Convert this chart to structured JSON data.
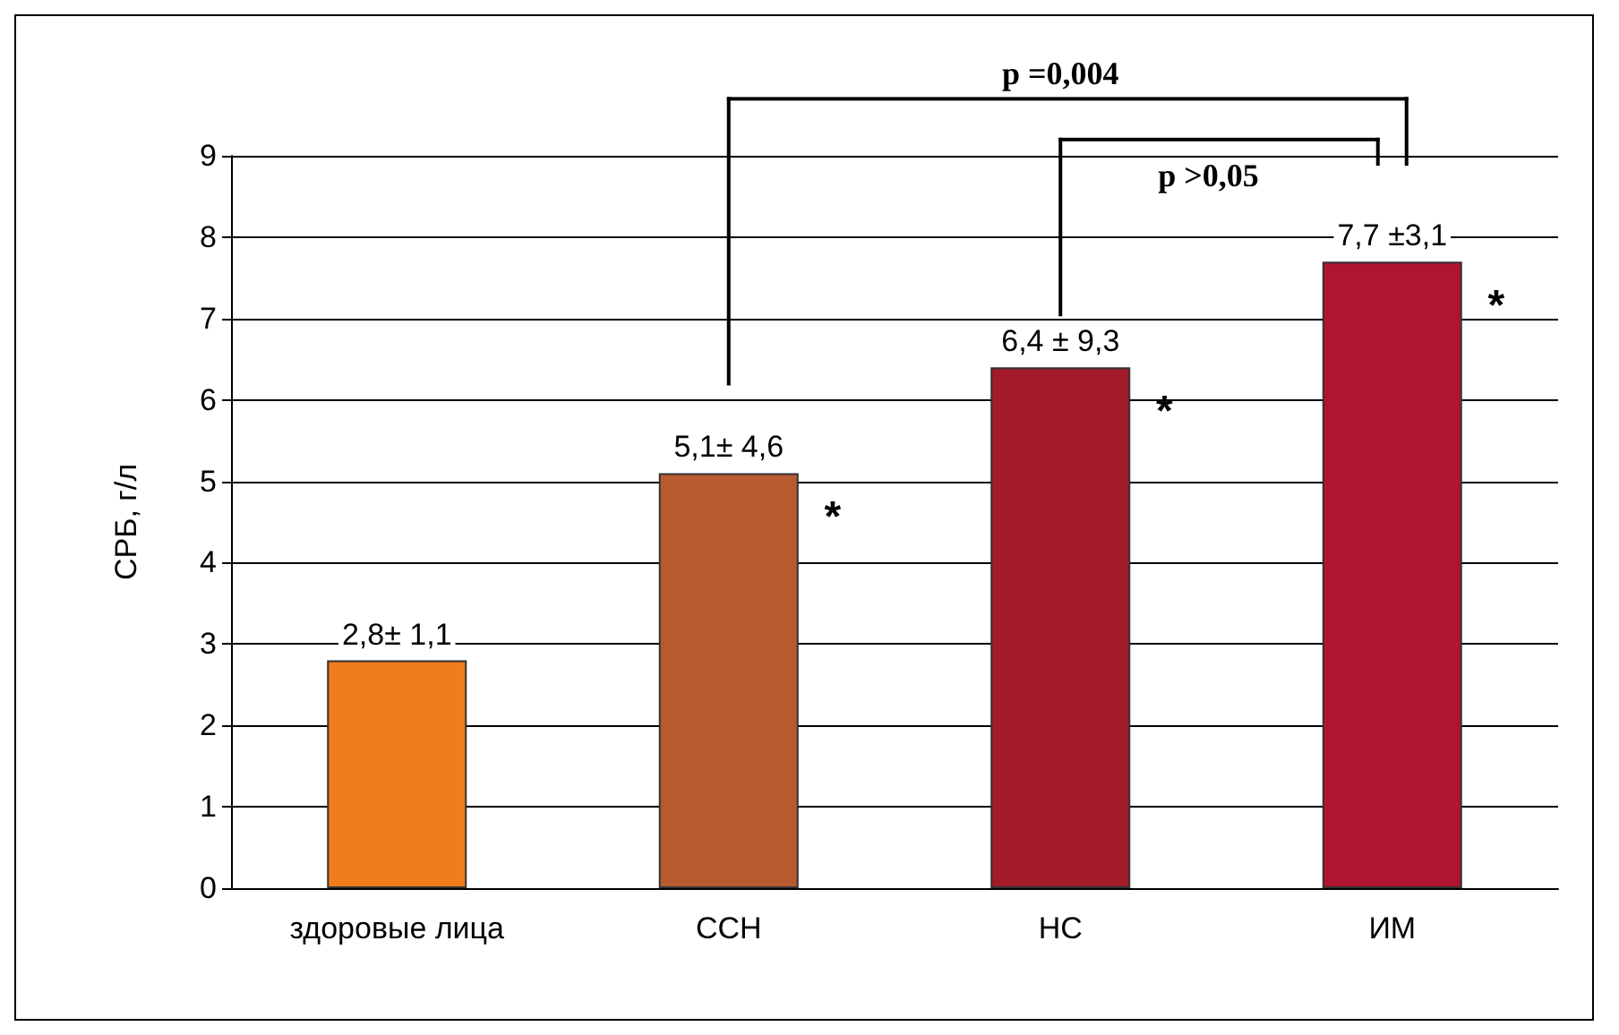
{
  "chart_data": {
    "type": "bar",
    "ylabel": "СРБ, г/л",
    "categories": [
      "здоровые лица",
      "ССН",
      "НС",
      "ИМ"
    ],
    "values": [
      2.8,
      5.1,
      6.4,
      7.7
    ],
    "colors": [
      "#f07c1c",
      "#b85a30",
      "#a31a2a",
      "#b0142e"
    ],
    "value_labels": [
      "2,8± 1,1",
      "5,1± 4,6",
      "6,4 ± 9,3",
      "7,7 ±3,1"
    ],
    "ylim": [
      0,
      9
    ],
    "yticks": [
      0,
      1,
      2,
      3,
      4,
      5,
      6,
      7,
      8,
      9
    ],
    "grid": "y",
    "annotations": [
      "p =0,004",
      "p >0,05",
      "*",
      "*",
      "*"
    ]
  }
}
